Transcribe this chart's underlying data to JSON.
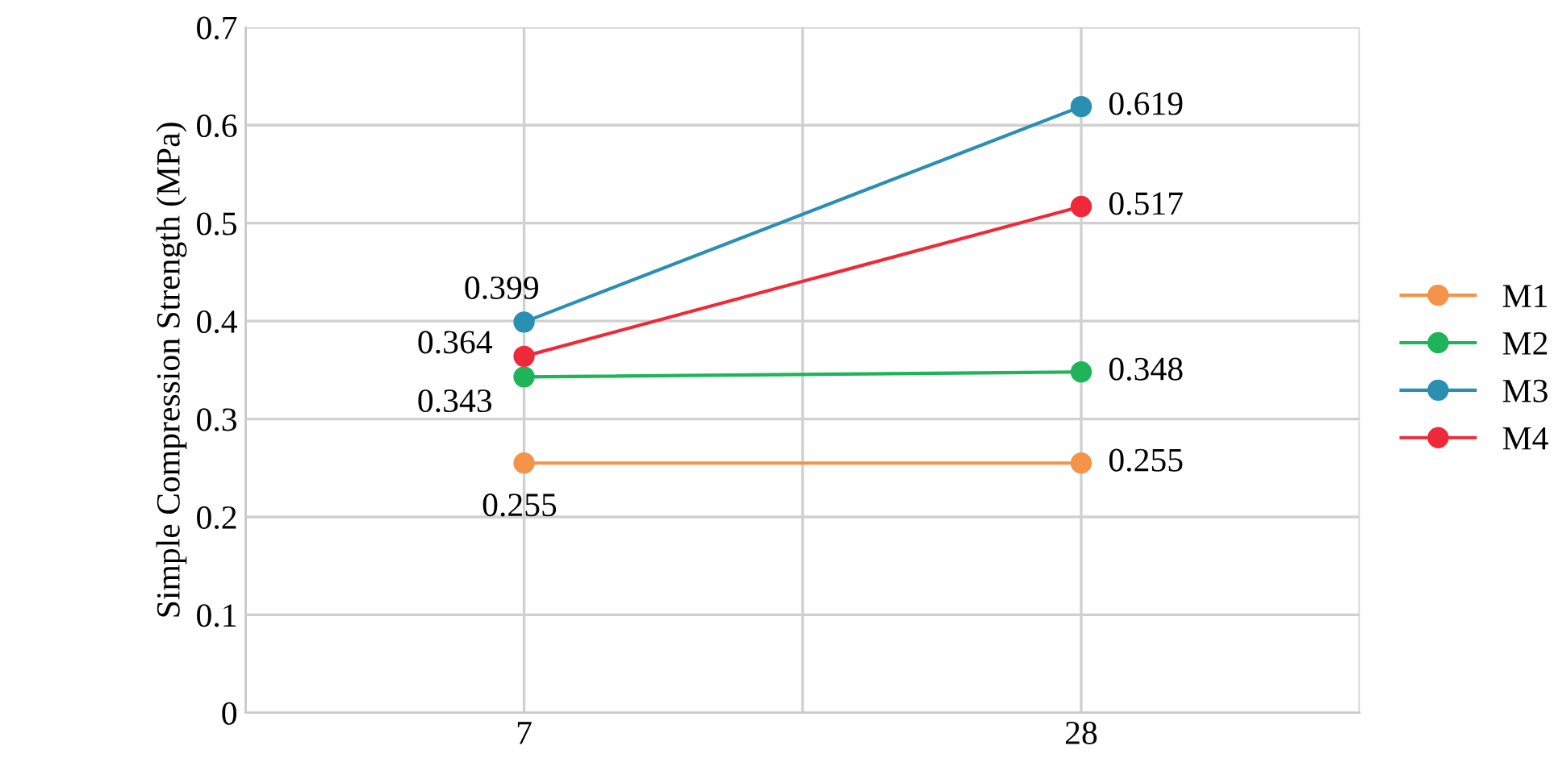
{
  "chart_data": {
    "type": "line",
    "ylabel": "Simple Compression Strength (MPa)",
    "categories": [
      "7",
      "28"
    ],
    "series": [
      {
        "name": "M1",
        "color": "#f4934a",
        "values": [
          0.255,
          0.255
        ]
      },
      {
        "name": "M2",
        "color": "#1fb35a",
        "values": [
          0.343,
          0.348
        ]
      },
      {
        "name": "M3",
        "color": "#2a8fb0",
        "values": [
          0.399,
          0.619
        ]
      },
      {
        "name": "M4",
        "color": "#ee2a3a",
        "values": [
          0.364,
          0.517
        ]
      }
    ],
    "ylim": [
      0,
      0.7
    ],
    "yticks": [
      {
        "value": 0,
        "label": "0"
      },
      0.1,
      0.2,
      0.3,
      0.4,
      0.5,
      0.6,
      0.7
    ],
    "grid": true,
    "legend": "right",
    "marker": "circle",
    "line_style": "solid",
    "data_labels": true
  }
}
